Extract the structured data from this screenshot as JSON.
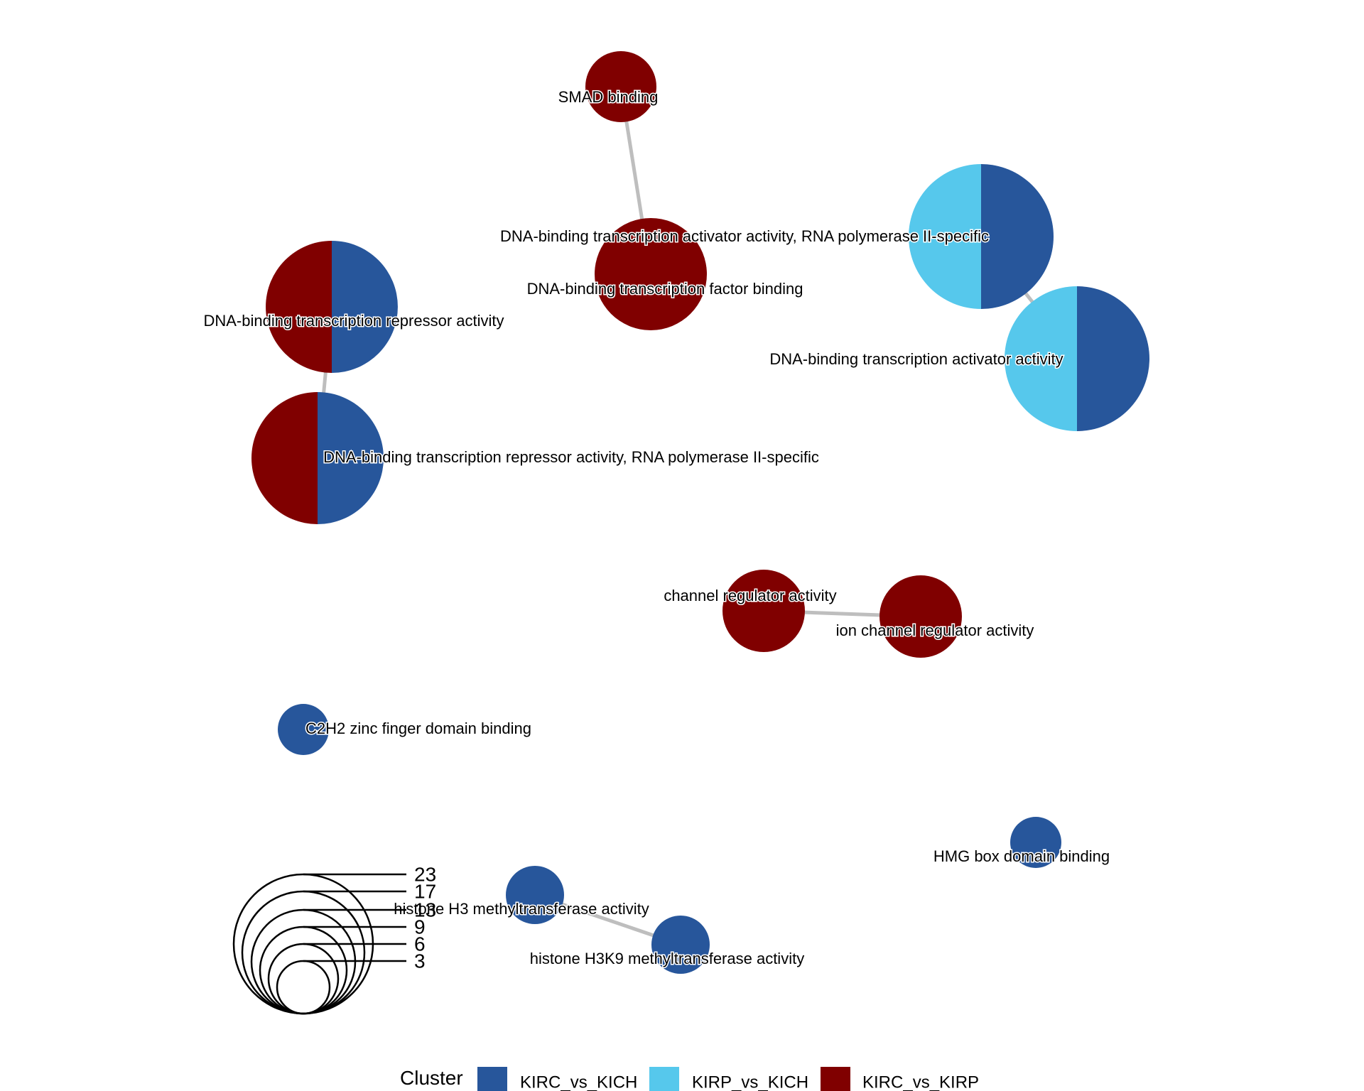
{
  "chart_data": {
    "type": "network-pie",
    "size_legend": {
      "values": [
        3,
        6,
        9,
        13,
        17,
        23
      ]
    },
    "color_legend": {
      "title": "Cluster",
      "items": [
        {
          "name": "KIRC_vs_KICH",
          "color": "#27569B"
        },
        {
          "name": "KIRP_vs_KICH",
          "color": "#56C8EC"
        },
        {
          "name": "KIRC_vs_KIRP",
          "color": "#800000"
        }
      ]
    },
    "nodes": [
      {
        "id": "smad",
        "label": "SMAD binding",
        "size": 9,
        "slices": {
          "KIRC_vs_KIRP": 1
        }
      },
      {
        "id": "tf_binding",
        "label": "DNA-binding transcription factor binding",
        "size": 17,
        "slices": {
          "KIRC_vs_KIRP": 1
        }
      },
      {
        "id": "act_pol2",
        "label": "DNA-binding transcription activator activity, RNA polymerase II-specific",
        "size": 23,
        "slices": {
          "KIRC_vs_KICH": 1,
          "KIRP_vs_KICH": 1
        }
      },
      {
        "id": "act",
        "label": "DNA-binding transcription activator activity",
        "size": 23,
        "slices": {
          "KIRC_vs_KICH": 1,
          "KIRP_vs_KICH": 1
        }
      },
      {
        "id": "rep",
        "label": "DNA-binding transcription repressor activity",
        "size": 20,
        "slices": {
          "KIRC_vs_KICH": 1,
          "KIRC_vs_KIRP": 1
        }
      },
      {
        "id": "rep_pol2",
        "label": "DNA-binding transcription repressor activity, RNA polymerase II-specific",
        "size": 20,
        "slices": {
          "KIRC_vs_KICH": 1,
          "KIRC_vs_KIRP": 1
        }
      },
      {
        "id": "chan",
        "label": "channel regulator activity",
        "size": 10,
        "slices": {
          "KIRC_vs_KIRP": 1
        }
      },
      {
        "id": "ion_chan",
        "label": "ion channel regulator activity",
        "size": 10,
        "slices": {
          "KIRC_vs_KIRP": 1
        }
      },
      {
        "id": "c2h2",
        "label": "C2H2 zinc finger domain binding",
        "size": 4,
        "slices": {
          "KIRC_vs_KICH": 1
        }
      },
      {
        "id": "hmg",
        "label": "HMG box domain binding",
        "size": 4,
        "slices": {
          "KIRC_vs_KICH": 1
        }
      },
      {
        "id": "h3mt",
        "label": "histone H3 methyltransferase activity",
        "size": 6,
        "slices": {
          "KIRC_vs_KICH": 1
        }
      },
      {
        "id": "h3k9mt",
        "label": "histone H3K9 methyltransferase activity",
        "size": 6,
        "slices": {
          "KIRC_vs_KICH": 1
        }
      }
    ],
    "edges": [
      {
        "source": "smad",
        "target": "tf_binding"
      },
      {
        "source": "act_pol2",
        "target": "act"
      },
      {
        "source": "rep",
        "target": "rep_pol2"
      },
      {
        "source": "chan",
        "target": "ion_chan"
      },
      {
        "source": "h3mt",
        "target": "h3k9mt"
      }
    ]
  }
}
